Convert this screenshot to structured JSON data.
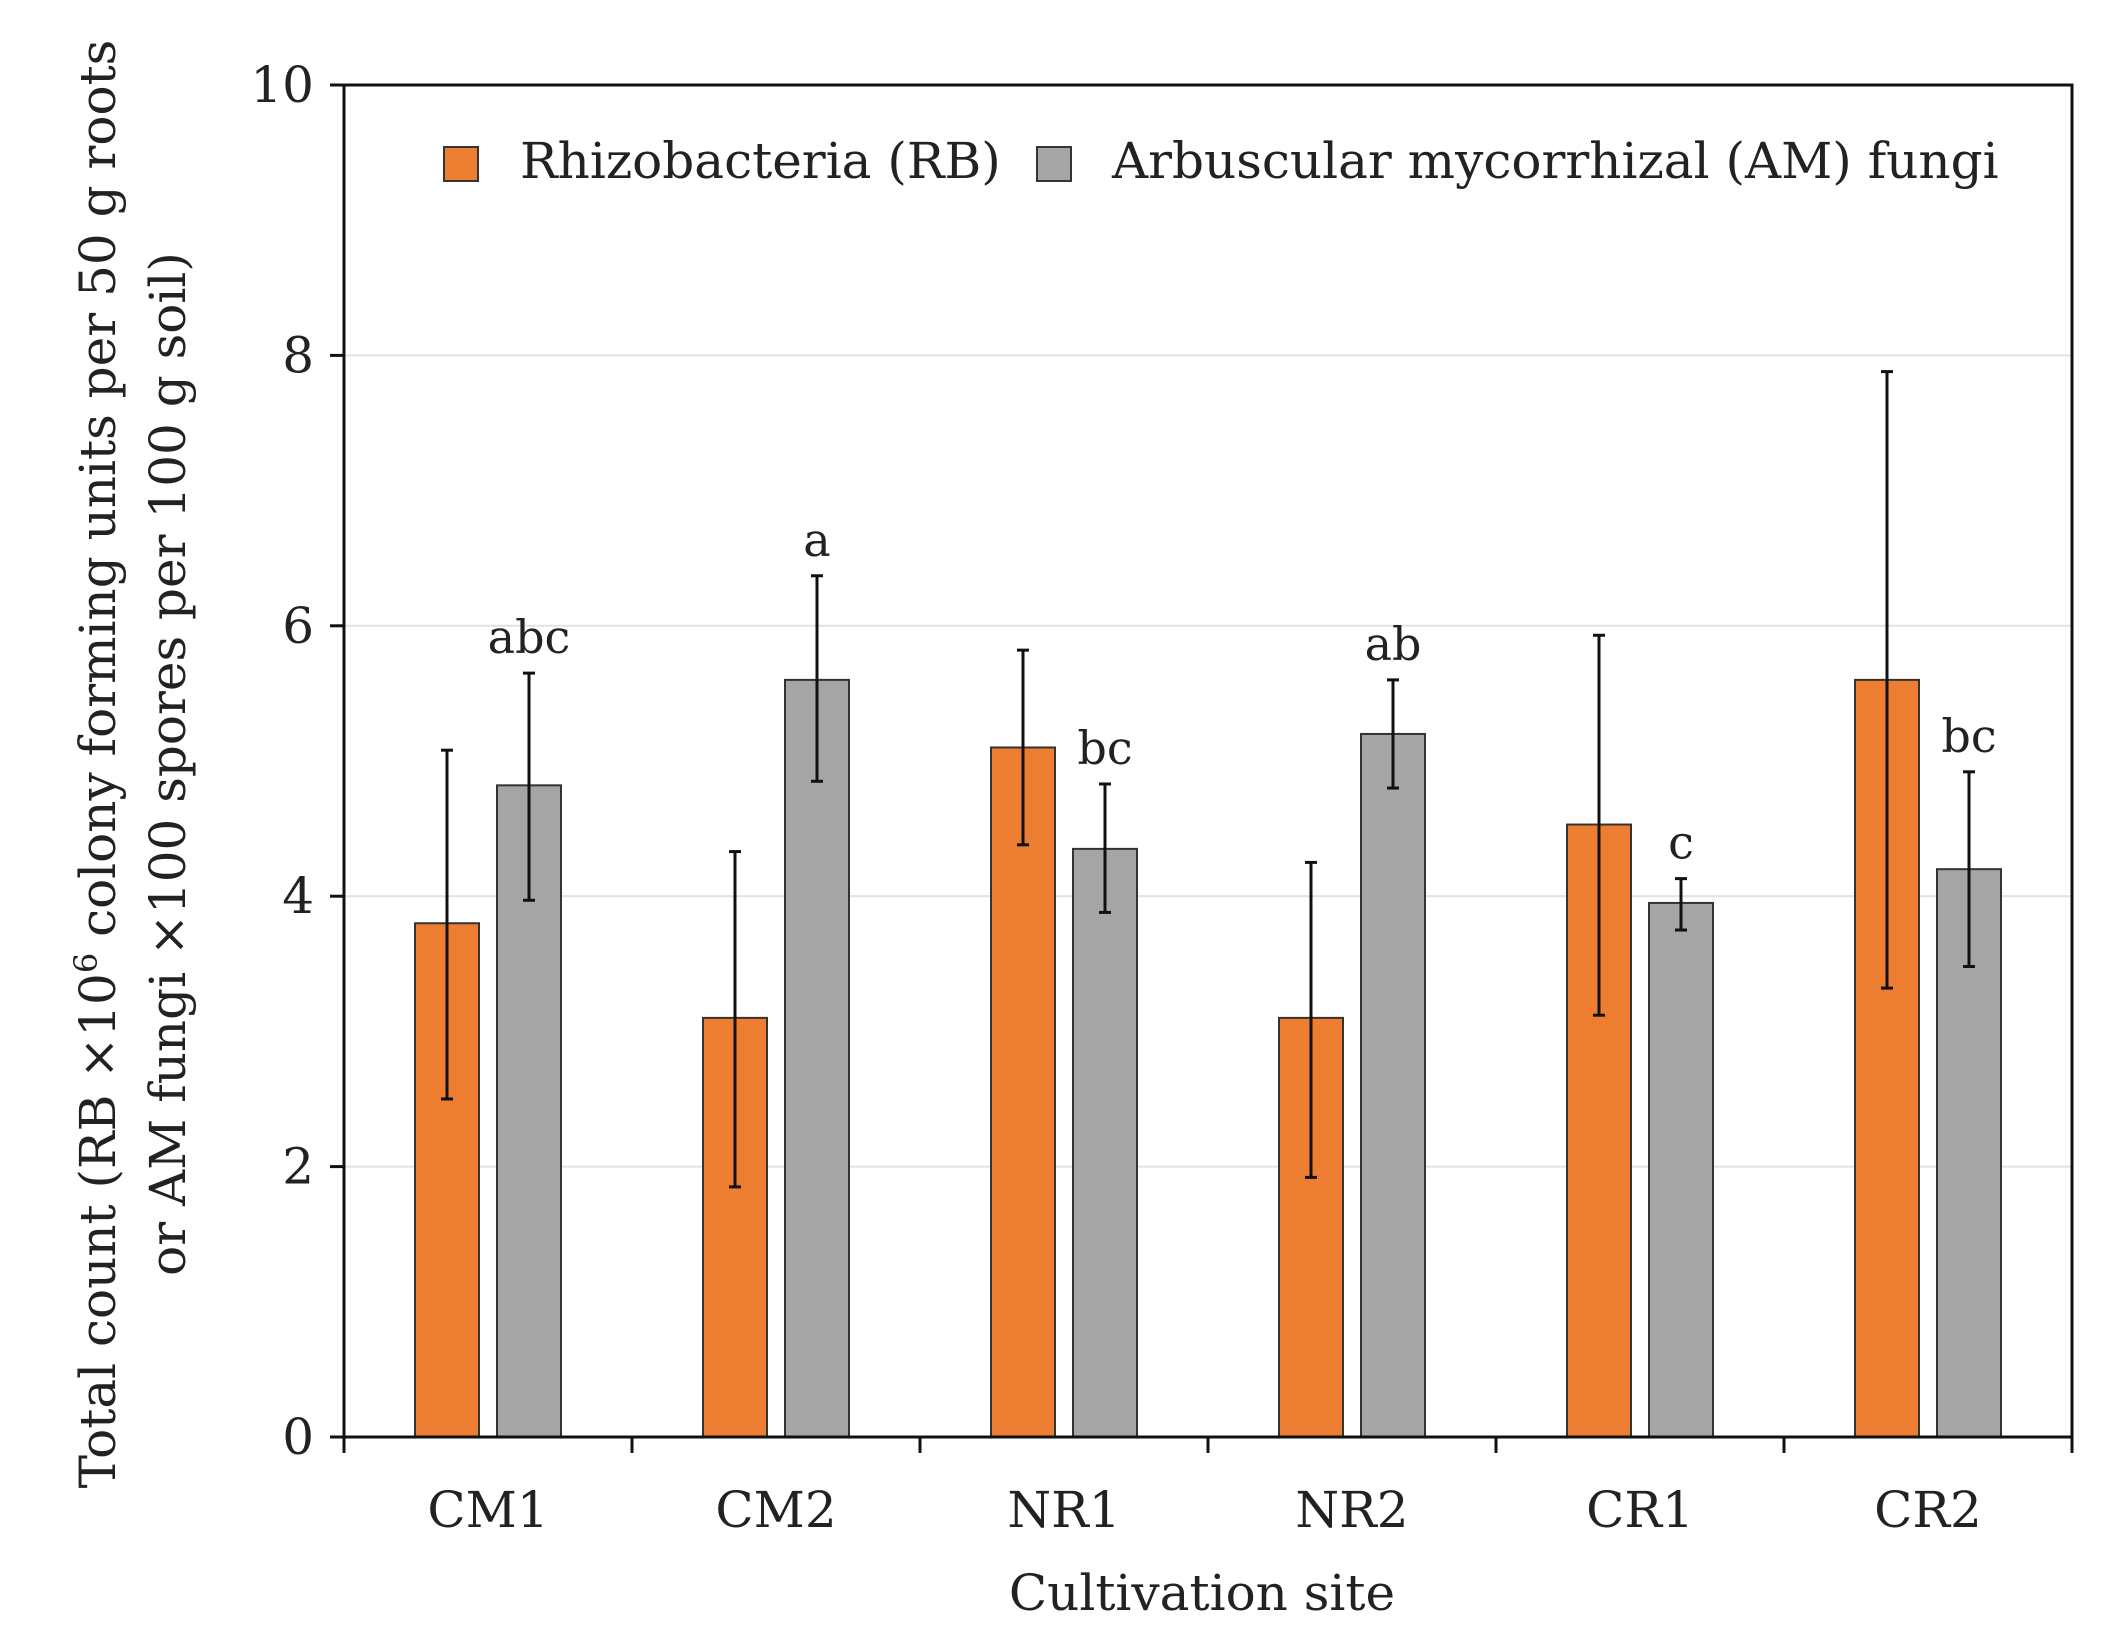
{
  "chart_data": {
    "type": "bar",
    "xlabel": "Cultivation site",
    "ylabel_line1": "Total count (RB ×10",
    "ylabel_sup": "6",
    "ylabel_line1_rest": " colony forming units per 50 g roots",
    "ylabel_line2": "or AM fungi ×100 spores per 100 g soil)",
    "ylim": [
      0,
      10
    ],
    "yticks": [
      "0",
      "2",
      "4",
      "6",
      "8",
      "10"
    ],
    "ytick_values": [
      0,
      2,
      4,
      6,
      8,
      10
    ],
    "grid": "horizontal",
    "legend_placement": "top",
    "categories": [
      "CM1",
      "CM2",
      "NR1",
      "NR2",
      "CR1",
      "CR2"
    ],
    "series": [
      {
        "name": "Rhizobacteria (RB)",
        "color": "#ED7D31",
        "values": [
          3.8,
          3.1,
          5.1,
          3.1,
          4.53,
          5.6
        ],
        "error_low": [
          2.5,
          1.85,
          4.38,
          1.92,
          3.12,
          3.32
        ],
        "error_high": [
          5.08,
          4.33,
          5.82,
          4.25,
          5.93,
          7.88
        ]
      },
      {
        "name": "Arbuscular mycorrhizal (AM) fungi",
        "color": "#A5A5A5",
        "values": [
          4.82,
          5.6,
          4.35,
          5.2,
          3.95,
          4.2
        ],
        "error_low": [
          3.97,
          4.85,
          3.88,
          4.8,
          3.75,
          3.48
        ],
        "error_high": [
          5.65,
          6.37,
          4.83,
          5.6,
          4.13,
          4.92
        ],
        "significance": [
          "abc",
          "a",
          "bc",
          "ab",
          "c",
          "bc"
        ]
      }
    ]
  }
}
